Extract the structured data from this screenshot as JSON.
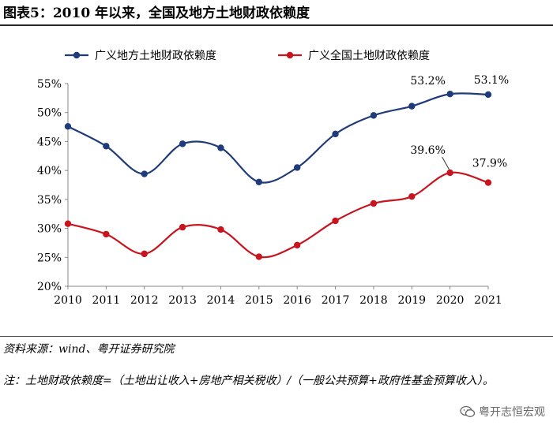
{
  "title": "图表5：2010 年以来，全国及地方土地财政依赖度",
  "source": "资料来源：wind、粤开证券研究院",
  "note": "注：土地财政依赖度=（土地出让收入+房地产相关税收）/（一般公共预算+政府性基金预算收入）。",
  "watermark": "粤开志恒宏观",
  "chart_data": {
    "type": "line",
    "categories": [
      "2010",
      "2011",
      "2012",
      "2013",
      "2014",
      "2015",
      "2016",
      "2017",
      "2018",
      "2019",
      "2020",
      "2021"
    ],
    "series": [
      {
        "name": "广义地方土地财政依赖度",
        "color": "#1f3b7a",
        "values": [
          47.6,
          44.2,
          39.4,
          44.6,
          43.9,
          38.0,
          40.5,
          46.3,
          49.5,
          51.1,
          53.2,
          53.1
        ]
      },
      {
        "name": "广义全国土地财政依赖度",
        "color": "#c8141e",
        "values": [
          30.8,
          29.0,
          25.6,
          30.2,
          29.8,
          25.1,
          27.1,
          31.3,
          34.3,
          35.5,
          39.6,
          37.9
        ]
      }
    ],
    "yticks": [
      "20%",
      "25%",
      "30%",
      "35%",
      "40%",
      "45%",
      "50%",
      "55%"
    ],
    "ylim": [
      20,
      55
    ],
    "annotations": [
      {
        "series": 0,
        "index": 10,
        "text": "53.2%"
      },
      {
        "series": 0,
        "index": 11,
        "text": "53.1%"
      },
      {
        "series": 1,
        "index": 10,
        "text": "39.6%"
      },
      {
        "series": 1,
        "index": 11,
        "text": "37.9%"
      }
    ]
  }
}
